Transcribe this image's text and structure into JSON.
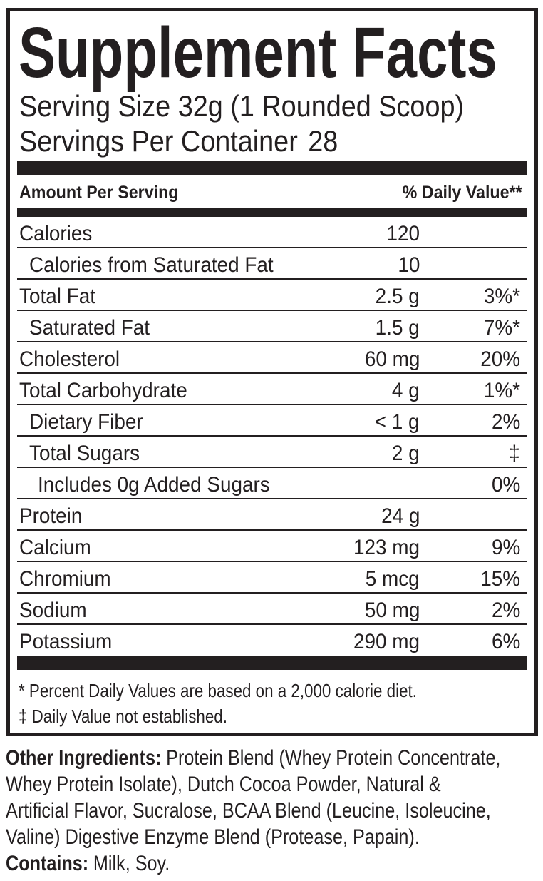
{
  "label": {
    "title": "Supplement Facts",
    "serving_size": "Serving Size 32g (1 Rounded Scoop)",
    "servings_per_container_label": "Servings Per Container",
    "servings_per_container_value": "28",
    "header": {
      "amount": "Amount Per Serving",
      "daily_value": "% Daily Value**"
    },
    "rows": [
      {
        "name": "Calories",
        "amount": "120",
        "dv": "",
        "indent": 0
      },
      {
        "name": "Calories from Saturated Fat",
        "amount": "10",
        "dv": "",
        "indent": 1
      },
      {
        "name": "Total Fat",
        "amount": "2.5 g",
        "dv": "3%*",
        "indent": 0
      },
      {
        "name": "Saturated Fat",
        "amount": "1.5 g",
        "dv": "7%*",
        "indent": 1
      },
      {
        "name": "Cholesterol",
        "amount": "60 mg",
        "dv": "20%",
        "indent": 0
      },
      {
        "name": "Total Carbohydrate",
        "amount": "4 g",
        "dv": "1%*",
        "indent": 0
      },
      {
        "name": "Dietary Fiber",
        "amount": "< 1 g",
        "dv": "2%",
        "indent": 1
      },
      {
        "name": "Total Sugars",
        "amount": "2 g",
        "dv": "‡",
        "indent": 1
      },
      {
        "name": "Includes 0g Added Sugars",
        "amount": "",
        "dv": "0%",
        "indent": 2
      },
      {
        "name": "Protein",
        "amount": "24 g",
        "dv": "",
        "indent": 0
      },
      {
        "name": "Calcium",
        "amount": "123 mg",
        "dv": "9%",
        "indent": 0
      },
      {
        "name": "Chromium",
        "amount": "5 mcg",
        "dv": "15%",
        "indent": 0
      },
      {
        "name": "Sodium",
        "amount": "50 mg",
        "dv": "2%",
        "indent": 0
      },
      {
        "name": "Potassium",
        "amount": "290 mg",
        "dv": "6%",
        "indent": 0
      }
    ],
    "footnotes": [
      "* Percent Daily Values are based on a 2,000 calorie diet.",
      "‡ Daily Value not established."
    ]
  },
  "other_ingredients": {
    "label": "Other Ingredients:",
    "lines": [
      "Protein Blend (Whey Protein Concentrate,",
      "Whey Protein Isolate), Dutch Cocoa Powder, Natural &",
      "Artificial Flavor, Sucralose, BCAA Blend (Leucine, Isoleucine,",
      "Valine) Digestive Enzyme Blend (Protease, Papain)."
    ]
  },
  "contains": {
    "label": "Contains:",
    "text": "Milk, Soy."
  },
  "colors": {
    "ink": "#231f20",
    "background": "#ffffff"
  }
}
